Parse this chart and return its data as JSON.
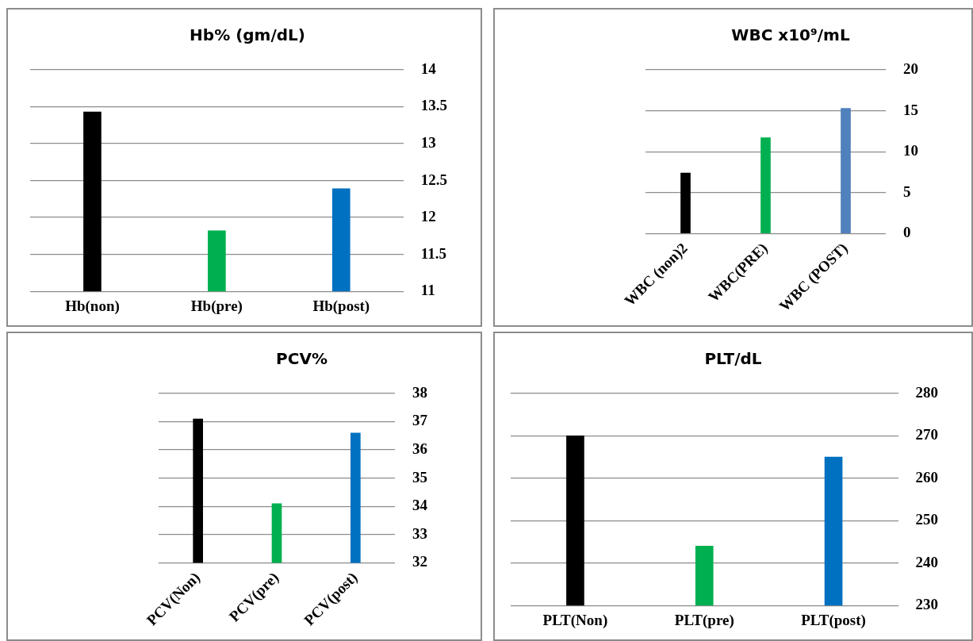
{
  "chart_data": [
    {
      "type": "bar",
      "title": "Hb% (gm/dL)",
      "categories": [
        "Hb(non)",
        "Hb(pre)",
        "Hb(post)"
      ],
      "values": [
        13.43,
        11.82,
        12.39
      ],
      "colors": [
        "#000000",
        "#00b050",
        "#0070c0"
      ],
      "ylim": [
        11,
        14
      ],
      "yticks": [
        11,
        11.5,
        12,
        12.5,
        13,
        13.5,
        14
      ],
      "grid": "y",
      "legend": false
    },
    {
      "type": "bar",
      "title": "WBC x10⁹/mL",
      "categories": [
        "WBC (non)2",
        "WBC(PRE)",
        "WBC (POST)"
      ],
      "values": [
        7.4,
        11.7,
        15.3
      ],
      "colors": [
        "#000000",
        "#00b050",
        "#4f81bd"
      ],
      "ylim": [
        0,
        20
      ],
      "yticks": [
        0,
        5,
        10,
        15,
        20
      ],
      "grid": "y",
      "legend": false
    },
    {
      "type": "bar",
      "title": "PCV%",
      "categories": [
        "PCV(Non)",
        "PCV(pre)",
        "PCV(post)"
      ],
      "values": [
        37.1,
        34.1,
        36.6
      ],
      "colors": [
        "#000000",
        "#00b050",
        "#0070c0"
      ],
      "ylim": [
        32,
        38
      ],
      "yticks": [
        32,
        33,
        34,
        35,
        36,
        37,
        38
      ],
      "grid": "y",
      "legend": false
    },
    {
      "type": "bar",
      "title": "PLT/dL",
      "categories": [
        "PLT(Non)",
        "PLT(pre)",
        "PLT(post)"
      ],
      "values": [
        270,
        244,
        265
      ],
      "colors": [
        "#000000",
        "#00b050",
        "#0070c0"
      ],
      "ylim": [
        230,
        280
      ],
      "yticks": [
        230,
        240,
        250,
        260,
        270,
        280
      ],
      "grid": "y",
      "legend": false
    }
  ]
}
